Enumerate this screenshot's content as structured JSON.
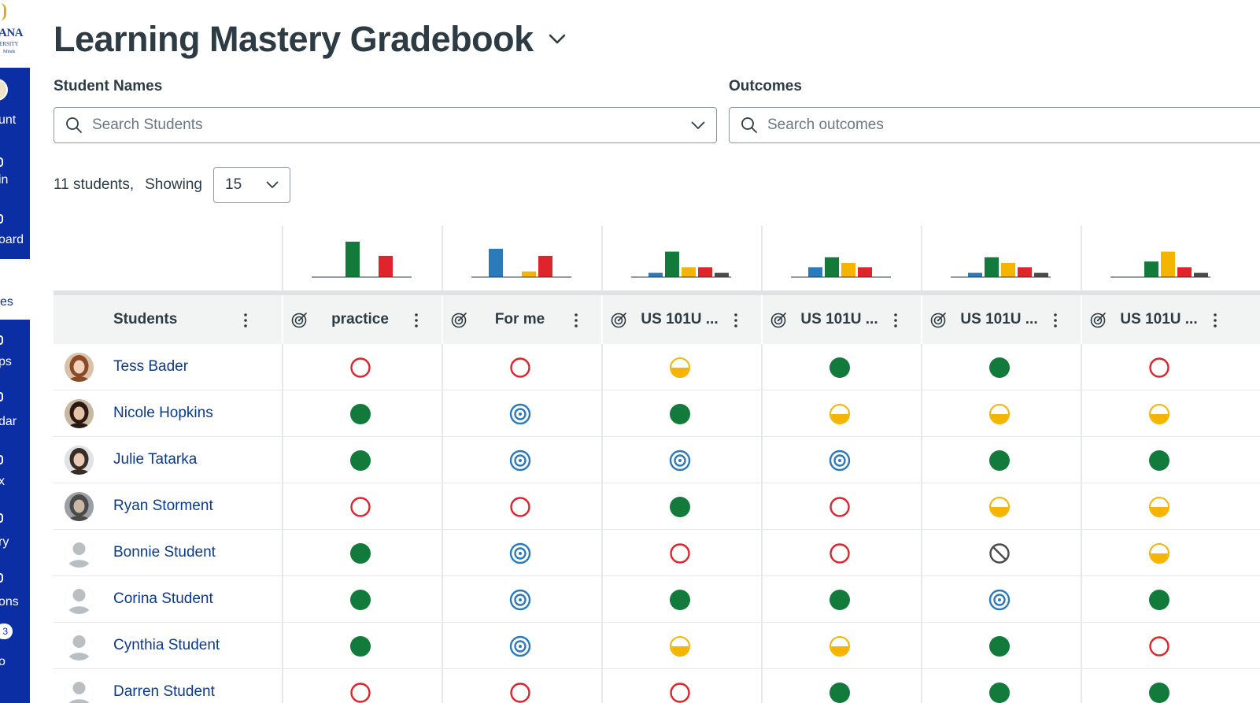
{
  "sidebar": {
    "logo_text": "ANA",
    "logo_sub": "ERSITY",
    "logo_minds": "Minds",
    "items": [
      {
        "label": "unt"
      },
      {
        "label": "in"
      },
      {
        "label": "oard"
      },
      {
        "label": "es"
      },
      {
        "label": "ps"
      },
      {
        "label": "dar"
      },
      {
        "label": "x"
      },
      {
        "label": "ry"
      },
      {
        "label": "ons"
      },
      {
        "label": "o"
      }
    ],
    "badge": "3"
  },
  "header": {
    "title": "Learning Mastery Gradebook"
  },
  "filters": {
    "students_label": "Student Names",
    "students_placeholder": "Search Students",
    "outcomes_label": "Outcomes",
    "outcomes_placeholder": "Search outcomes"
  },
  "pagination": {
    "count_text": "11 students,",
    "showing_label": "Showing",
    "per_page": "15"
  },
  "colors": {
    "exceeds": "#127a3a",
    "mastery": "#2b7abc",
    "near": "#f4b400",
    "below": "#e0242b",
    "none": "#4a4a4a"
  },
  "table": {
    "students_header": "Students",
    "columns": [
      {
        "label": "practice",
        "histogram": [
          0,
          5,
          0,
          3,
          0
        ]
      },
      {
        "label": "For me",
        "histogram": [
          4,
          0,
          0.8,
          3,
          0
        ]
      },
      {
        "label": "US 101U ...",
        "histogram": [
          0.6,
          3.6,
          1.4,
          1.4,
          0.6
        ]
      },
      {
        "label": "US 101U ...",
        "histogram": [
          1.4,
          2.8,
          2,
          1.4,
          0
        ]
      },
      {
        "label": "US 101U ...",
        "histogram": [
          0.6,
          2.8,
          2,
          1.4,
          0.6
        ]
      },
      {
        "label": "US 101U ...",
        "histogram": [
          0,
          2.2,
          3.6,
          1.4,
          0.6
        ]
      }
    ],
    "rows": [
      {
        "name": "Tess Bader",
        "avatar": "photo1",
        "scores": [
          "below",
          "below",
          "near",
          "exceeds",
          "exceeds",
          "below"
        ]
      },
      {
        "name": "Nicole Hopkins",
        "avatar": "photo2",
        "scores": [
          "exceeds",
          "mastery",
          "exceeds",
          "near",
          "near",
          "near"
        ]
      },
      {
        "name": "Julie Tatarka",
        "avatar": "photo3",
        "scores": [
          "exceeds",
          "mastery",
          "mastery",
          "mastery",
          "exceeds",
          "exceeds"
        ]
      },
      {
        "name": "Ryan Storment",
        "avatar": "photo4",
        "scores": [
          "below",
          "below",
          "exceeds",
          "below",
          "near",
          "near"
        ]
      },
      {
        "name": "Bonnie Student",
        "avatar": "default",
        "scores": [
          "exceeds",
          "mastery",
          "below",
          "below",
          "none",
          "near"
        ]
      },
      {
        "name": "Corina Student",
        "avatar": "default",
        "scores": [
          "exceeds",
          "mastery",
          "exceeds",
          "exceeds",
          "mastery",
          "exceeds"
        ]
      },
      {
        "name": "Cynthia Student",
        "avatar": "default",
        "scores": [
          "exceeds",
          "mastery",
          "near",
          "near",
          "exceeds",
          "below"
        ]
      },
      {
        "name": "Darren Student",
        "avatar": "default",
        "scores": [
          "below",
          "below",
          "below",
          "exceeds",
          "exceeds",
          "exceeds"
        ]
      }
    ]
  }
}
